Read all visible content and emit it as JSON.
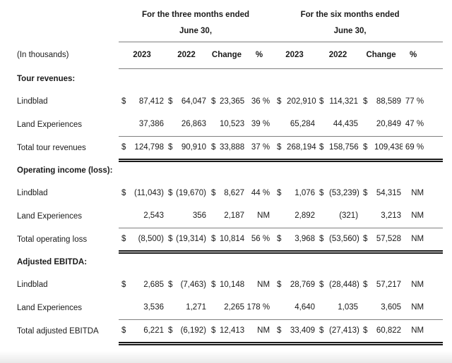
{
  "meta": {
    "units_label": "(In thousands)"
  },
  "colors": {
    "text": "#1a1a1a",
    "rule": "#808080",
    "double_rule": "#1a1a1a"
  },
  "header": {
    "groups": [
      {
        "period": "For the three months ended",
        "date": "June 30,",
        "cols": [
          "2023",
          "2022",
          "Change",
          "%"
        ]
      },
      {
        "period": "For the six months ended",
        "date": "June 30,",
        "cols": [
          "2023",
          "2022",
          "Change",
          "%"
        ]
      }
    ]
  },
  "sections": [
    {
      "title": "Tour revenues:",
      "rows": [
        {
          "label": "Lindblad",
          "cells": [
            "$",
            "87,412",
            "$",
            "64,047",
            "$",
            "23,365",
            "36 %",
            "$",
            "202,910",
            "$",
            "114,321",
            "$",
            "88,589",
            "77 %"
          ]
        },
        {
          "label": "Land Experiences",
          "cells": [
            "",
            "37,386",
            "",
            "26,863",
            "",
            "10,523",
            "39 %",
            "",
            "65,284",
            "",
            "44,435",
            "",
            "20,849",
            "47 %"
          ]
        }
      ],
      "total": {
        "label": "Total tour revenues",
        "cells": [
          "$",
          "124,798",
          "$",
          "90,910",
          "$",
          "33,888",
          "37 %",
          "$",
          "268,194",
          "$",
          "158,756",
          "$",
          "109,438",
          "69 %"
        ]
      }
    },
    {
      "title": "Operating income (loss):",
      "rows": [
        {
          "label": "Lindblad",
          "cells": [
            "$",
            "(11,043)",
            "$",
            "(19,670)",
            "$",
            "8,627",
            "44 %",
            "$",
            "1,076",
            "$",
            "(53,239)",
            "$",
            "54,315",
            "NM"
          ]
        },
        {
          "label": "Land Experiences",
          "cells": [
            "",
            "2,543",
            "",
            "356",
            "",
            "2,187",
            "NM",
            "",
            "2,892",
            "",
            "(321)",
            "",
            "3,213",
            "NM"
          ]
        }
      ],
      "total": {
        "label": "Total operating loss",
        "cells": [
          "$",
          "(8,500)",
          "$",
          "(19,314)",
          "$",
          "10,814",
          "56 %",
          "$",
          "3,968",
          "$",
          "(53,560)",
          "$",
          "57,528",
          "NM"
        ]
      }
    },
    {
      "title": "Adjusted EBITDA:",
      "rows": [
        {
          "label": "Lindblad",
          "cells": [
            "$",
            "2,685",
            "$",
            "(7,463)",
            "$",
            "10,148",
            "NM",
            "$",
            "28,769",
            "$",
            "(28,448)",
            "$",
            "57,217",
            "NM"
          ]
        },
        {
          "label": "Land Experiences",
          "cells": [
            "",
            "3,536",
            "",
            "1,271",
            "",
            "2,265",
            "178 %",
            "",
            "4,640",
            "",
            "1,035",
            "",
            "3,605",
            "NM"
          ]
        }
      ],
      "total": {
        "label": "Total adjusted EBITDA",
        "cells": [
          "$",
          "6,221",
          "$",
          "(6,192)",
          "$",
          "12,413",
          "NM",
          "$",
          "33,409",
          "$",
          "(27,413)",
          "$",
          "60,822",
          "NM"
        ]
      }
    }
  ]
}
